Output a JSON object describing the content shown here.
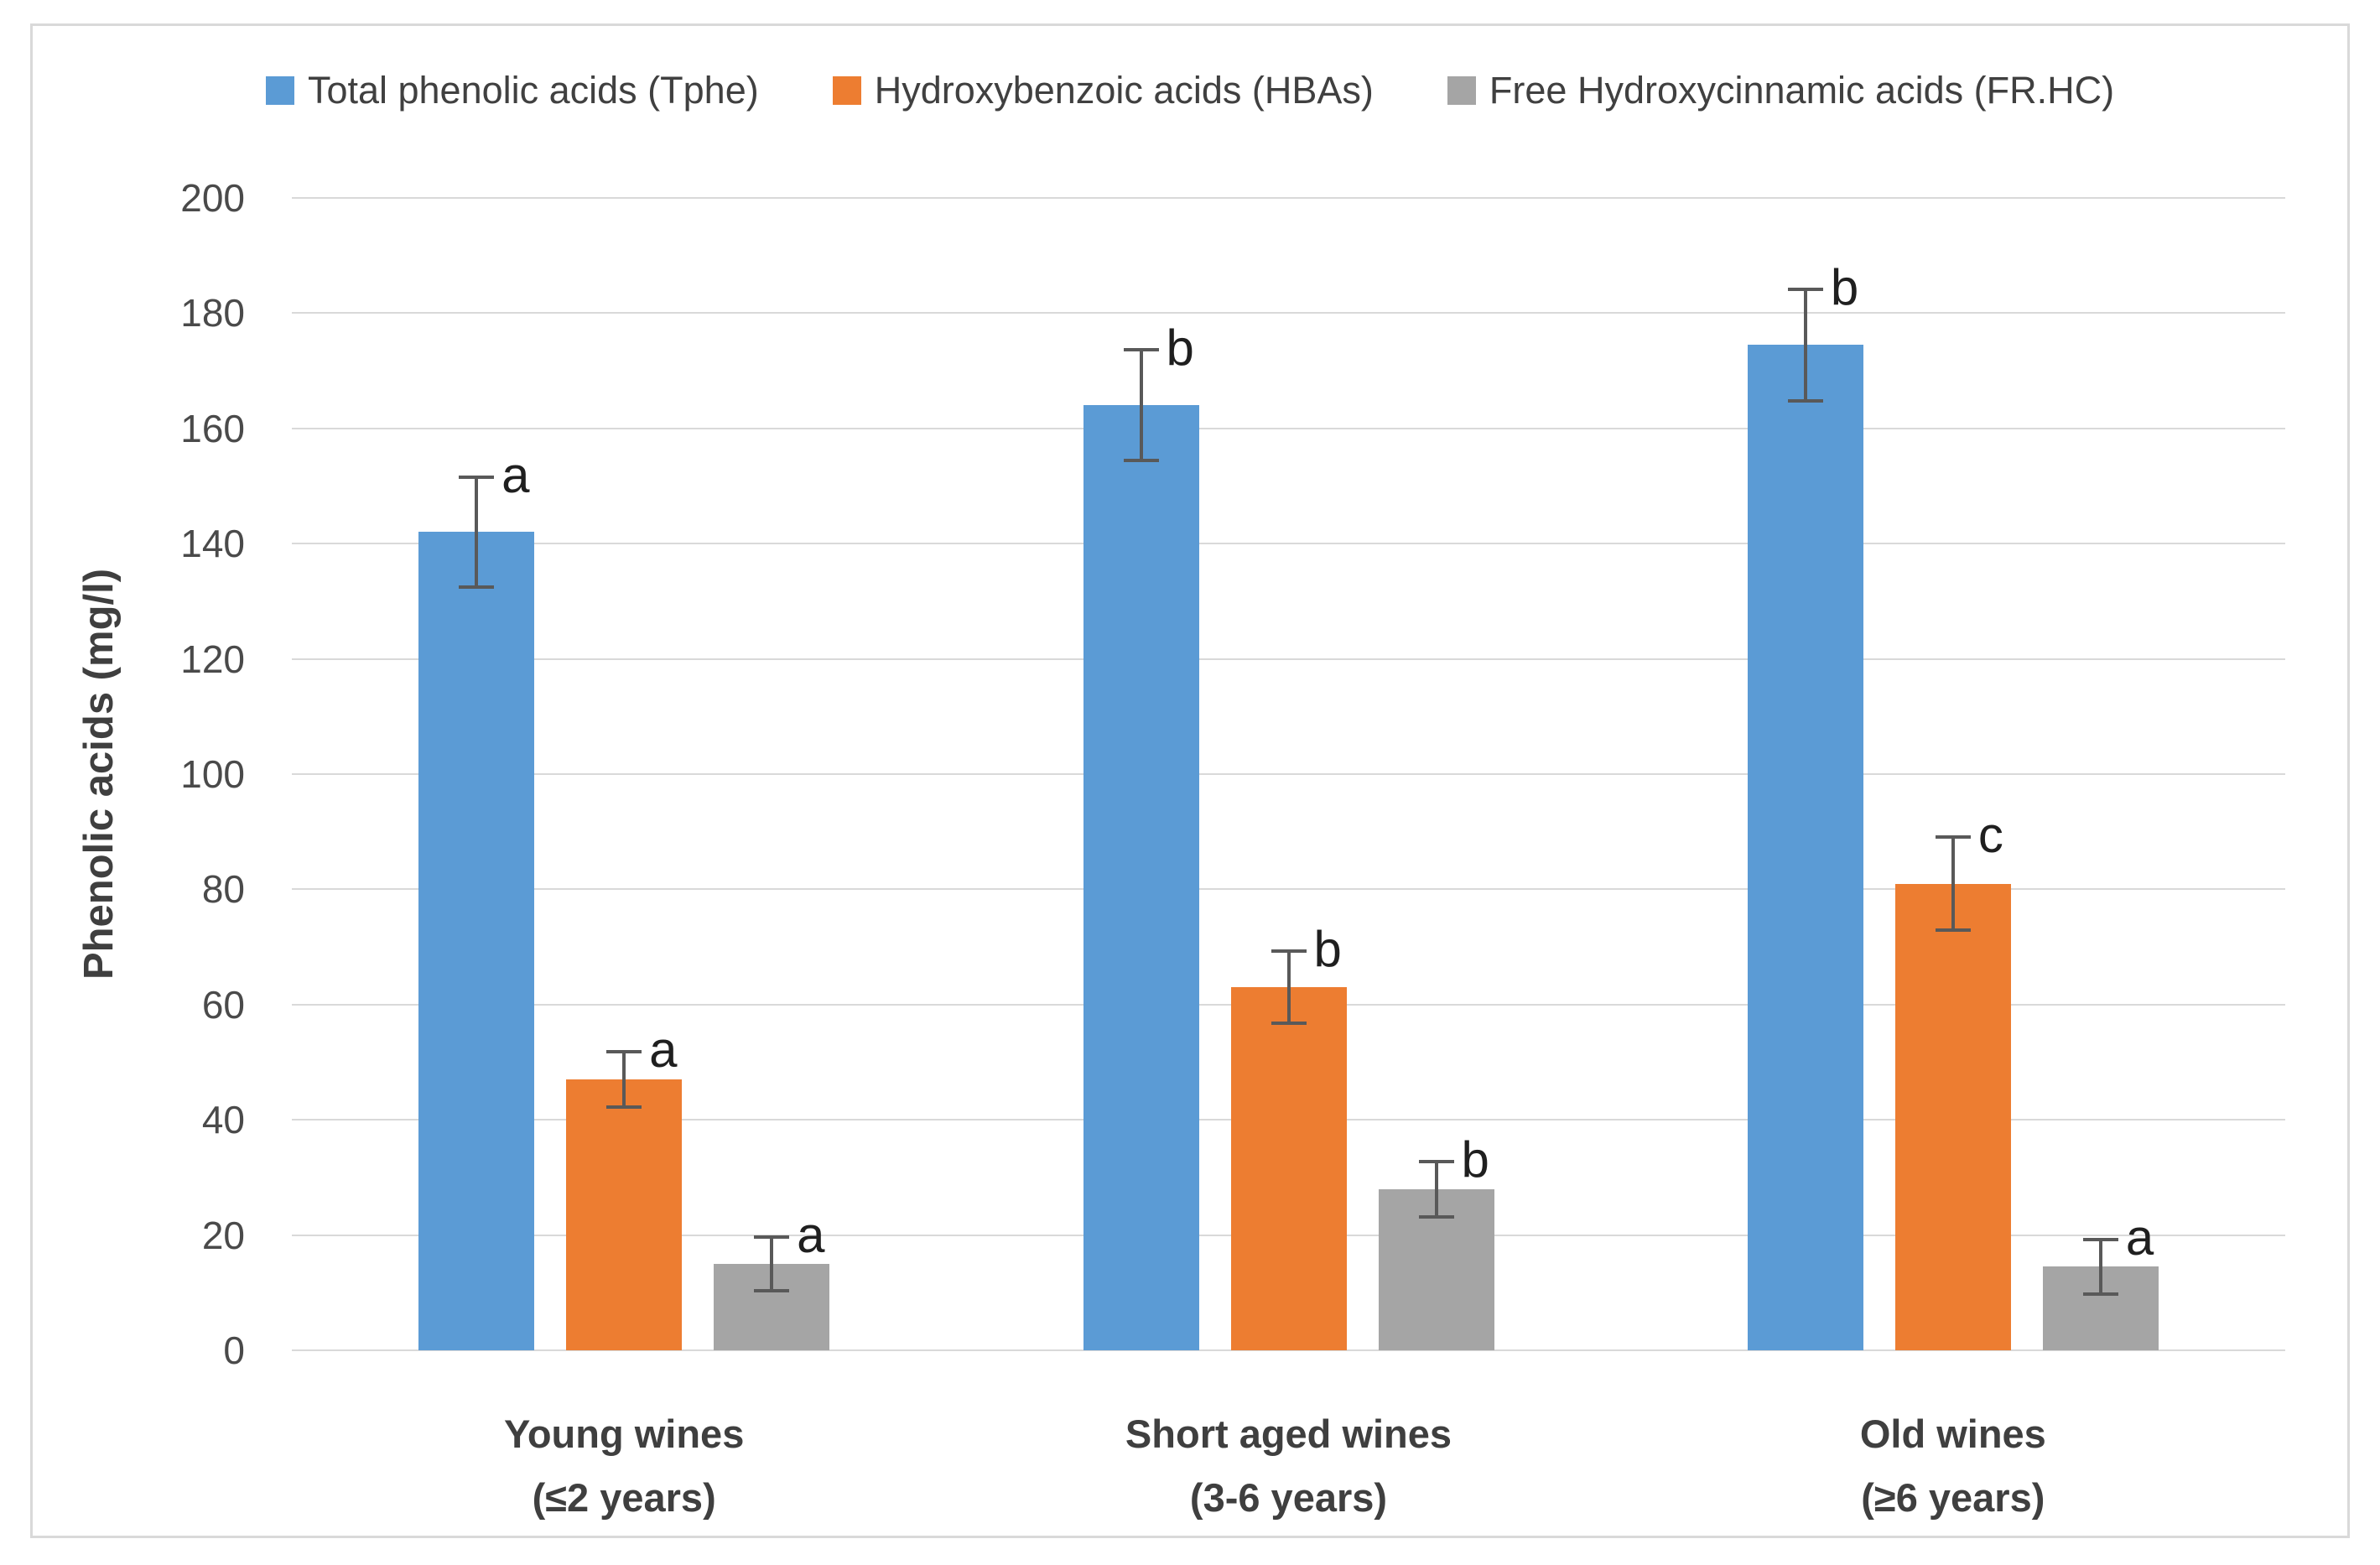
{
  "legend": {
    "position": "top",
    "items": [
      {
        "label": "Total phenolic acids (Tphe)",
        "color": "#5B9BD5"
      },
      {
        "label": "Hydroxybenzoic acids (HBAs)",
        "color": "#ED7D31"
      },
      {
        "label": "Free Hydroxycinnamic acids (FR.HC)",
        "color": "#A5A5A5"
      }
    ]
  },
  "y_axis": {
    "title": "Phenolic acids (mg/l)",
    "min": 0,
    "max": 200,
    "step": 20,
    "tick_labels": [
      "0",
      "20",
      "40",
      "60",
      "80",
      "100",
      "120",
      "140",
      "160",
      "180",
      "200"
    ]
  },
  "x_axis": {
    "categories": [
      {
        "title": "Young wines",
        "subtitle": "(≤2 years)"
      },
      {
        "title": "Short aged wines",
        "subtitle": "(3-6 years)"
      },
      {
        "title": "Old wines",
        "subtitle": "(≥6 years)"
      }
    ]
  },
  "chart_data": {
    "type": "bar",
    "title": "",
    "xlabel": "",
    "ylabel": "Phenolic acids (mg/l)",
    "ylim": [
      0,
      200
    ],
    "ytick_step": 20,
    "grid": true,
    "legend_position": "top",
    "categories": [
      "Young wines (≤2 years)",
      "Short aged wines (3-6 years)",
      "Old wines (≥6 years)"
    ],
    "series": [
      {
        "name": "Total phenolic acids (Tphe)",
        "color": "#5B9BD5",
        "values": [
          142,
          164,
          174.5
        ],
        "errors": [
          9.5,
          9.6,
          9.7
        ],
        "sig_letters": [
          "a",
          "b",
          "b"
        ]
      },
      {
        "name": "Hydroxybenzoic acids (HBAs)",
        "color": "#ED7D31",
        "values": [
          47,
          63,
          81
        ],
        "errors": [
          4.8,
          6.3,
          8.1
        ],
        "sig_letters": [
          "a",
          "b",
          "c"
        ]
      },
      {
        "name": "Free Hydroxycinnamic acids (FR.HC)",
        "color": "#A5A5A5",
        "values": [
          15,
          28,
          14.5
        ],
        "errors": [
          4.6,
          4.8,
          4.7
        ],
        "sig_letters": [
          "a",
          "b",
          "a"
        ]
      }
    ]
  }
}
